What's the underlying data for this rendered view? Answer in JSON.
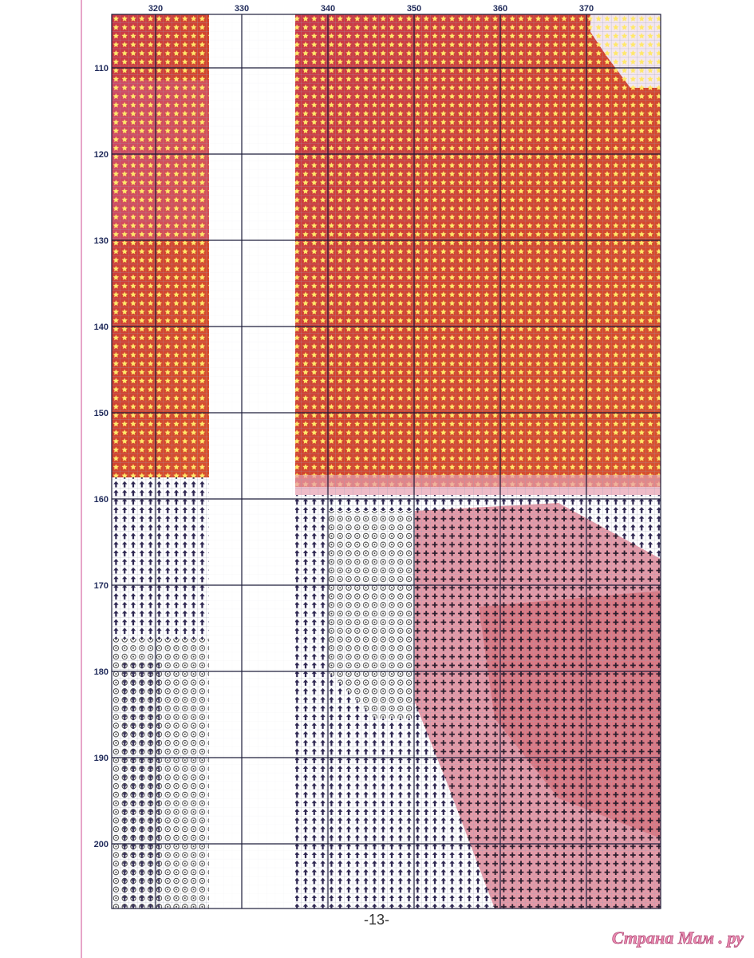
{
  "columns": [
    320,
    330,
    340,
    350,
    360,
    370
  ],
  "rows": [
    110,
    120,
    130,
    140,
    150,
    160,
    170,
    180,
    190,
    200
  ],
  "page_number": "-13-",
  "watermark": "Страна Мам . ру"
}
